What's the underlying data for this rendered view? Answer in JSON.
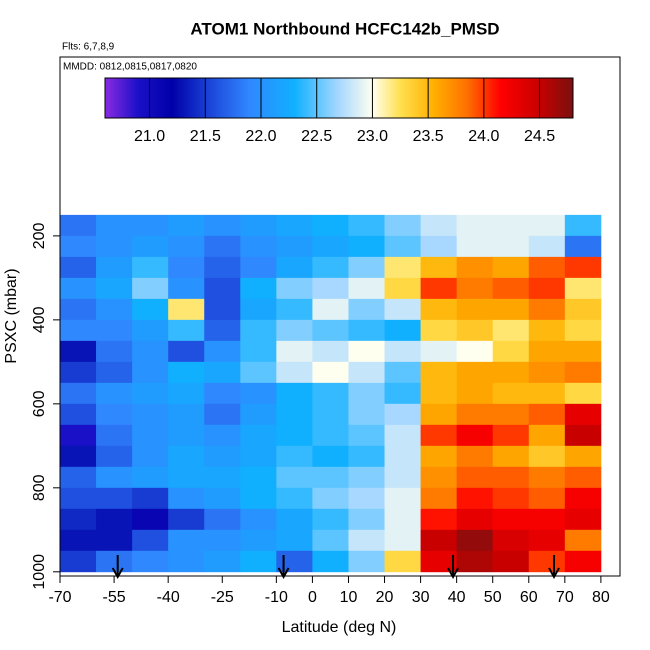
{
  "chart_data": {
    "type": "heatmap",
    "title": "ATOM1 Northbound HCFC142b_PMSD",
    "subtitle": "Flts: 6,7,8,9",
    "annotation": "MMDD: 0812,0815,0817,0820",
    "x_label": "Latitude (deg N)",
    "y_label": "PSXC (mbar)",
    "xlim": [
      -70,
      85.3
    ],
    "ylim": [
      1010,
      -226
    ],
    "xticks": [
      -70,
      -55,
      -40,
      -25,
      -10,
      0,
      10,
      20,
      30,
      40,
      50,
      60,
      70,
      80
    ],
    "yticks": [
      200,
      400,
      600,
      800,
      1000
    ],
    "x_edges": [
      -70,
      -60,
      -50,
      -40,
      -30,
      -20,
      -10,
      0,
      10,
      20,
      30,
      40,
      50,
      60,
      70,
      80
    ],
    "y_edges": [
      150,
      200,
      250,
      300,
      350,
      400,
      450,
      500,
      550,
      600,
      650,
      700,
      750,
      800,
      850,
      900,
      950,
      1000
    ],
    "z": [
      [
        21.8,
        22.0,
        22.0,
        22.1,
        22.0,
        22.1,
        22.2,
        22.3,
        22.4,
        22.6,
        22.8,
        22.9,
        22.9,
        22.9,
        22.4
      ],
      [
        21.9,
        22.0,
        22.1,
        22.0,
        21.8,
        22.0,
        22.1,
        22.2,
        22.3,
        22.5,
        22.7,
        22.9,
        22.9,
        22.8,
        21.8
      ],
      [
        21.7,
        22.1,
        22.4,
        21.9,
        21.7,
        21.9,
        22.2,
        22.4,
        22.6,
        23.2,
        23.5,
        23.7,
        23.6,
        23.9,
        24.0
      ],
      [
        22.0,
        22.2,
        22.6,
        22.0,
        21.6,
        22.3,
        22.6,
        22.7,
        22.9,
        23.3,
        24.0,
        23.8,
        23.9,
        24.0,
        23.2
      ],
      [
        21.8,
        22.0,
        22.3,
        23.2,
        21.6,
        22.2,
        22.4,
        22.9,
        22.6,
        22.8,
        23.5,
        23.6,
        23.6,
        23.8,
        23.4
      ],
      [
        21.9,
        21.9,
        22.1,
        22.4,
        21.7,
        22.4,
        22.6,
        22.5,
        22.4,
        22.3,
        23.3,
        23.4,
        23.2,
        23.5,
        23.3
      ],
      [
        21.3,
        21.8,
        22.0,
        21.6,
        22.0,
        22.4,
        22.9,
        22.8,
        23.0,
        22.8,
        22.9,
        23.0,
        23.3,
        23.6,
        23.6
      ],
      [
        21.5,
        21.7,
        22.0,
        22.3,
        22.2,
        22.5,
        22.8,
        23.0,
        22.8,
        22.5,
        23.5,
        23.6,
        23.6,
        23.7,
        23.8
      ],
      [
        21.8,
        22.0,
        22.1,
        22.2,
        21.9,
        22.0,
        22.3,
        22.4,
        22.6,
        22.4,
        23.5,
        23.6,
        23.5,
        23.5,
        23.3
      ],
      [
        21.6,
        21.9,
        22.0,
        22.1,
        21.8,
        22.1,
        22.3,
        22.4,
        22.6,
        22.7,
        23.6,
        23.8,
        23.8,
        23.9,
        24.3
      ],
      [
        20.9,
        21.8,
        22.0,
        22.1,
        22.0,
        22.2,
        22.3,
        22.4,
        22.5,
        22.8,
        24.0,
        24.2,
        24.0,
        23.6,
        24.5
      ],
      [
        21.3,
        21.7,
        22.0,
        22.2,
        22.1,
        22.2,
        22.4,
        22.3,
        22.4,
        22.8,
        23.6,
        23.8,
        23.6,
        23.4,
        23.6
      ],
      [
        21.7,
        22.0,
        22.1,
        22.2,
        22.2,
        22.3,
        22.5,
        22.5,
        22.6,
        22.8,
        23.7,
        23.9,
        23.9,
        23.8,
        23.9
      ],
      [
        21.6,
        21.6,
        21.5,
        22.0,
        22.1,
        22.3,
        22.4,
        22.6,
        22.7,
        22.9,
        23.8,
        24.1,
        24.0,
        23.9,
        24.2
      ],
      [
        21.4,
        21.3,
        21.1,
        21.5,
        21.8,
        22.0,
        22.2,
        22.4,
        22.6,
        22.9,
        24.1,
        24.3,
        24.2,
        24.2,
        24.3
      ],
      [
        21.3,
        21.3,
        21.6,
        22.0,
        22.0,
        22.1,
        22.2,
        22.5,
        22.8,
        22.9,
        24.5,
        24.7,
        24.4,
        24.3,
        23.8
      ],
      [
        21.5,
        21.8,
        21.9,
        22.0,
        22.1,
        22.3,
        21.7,
        22.3,
        22.6,
        23.3,
        24.3,
        24.6,
        24.5,
        24.0,
        24.2
      ]
    ],
    "colorbar_lim": [
      20.6,
      24.8
    ],
    "colorbar_ticks": [
      {
        "value": 21,
        "label": "21.0"
      },
      21.5,
      {
        "value": 22,
        "label": "22.0"
      },
      22.5,
      {
        "value": 23,
        "label": "23.0"
      },
      23.5,
      {
        "value": 24,
        "label": "24.0"
      },
      24.5
    ],
    "colorscale": [
      {
        "value": 20.6,
        "color": "#8a2be2"
      },
      {
        "value": 20.9,
        "color": "#1a10c8"
      },
      {
        "value": 21.2,
        "color": "#0000a8"
      },
      {
        "value": 21.6,
        "color": "#2050e0"
      },
      {
        "value": 21.9,
        "color": "#3088ff"
      },
      {
        "value": 22.3,
        "color": "#10b0ff"
      },
      {
        "value": 22.7,
        "color": "#a8d8ff"
      },
      {
        "value": 23.0,
        "color": "#fffff0"
      },
      {
        "value": 23.25,
        "color": "#ffe050"
      },
      {
        "value": 23.55,
        "color": "#ffb000"
      },
      {
        "value": 23.85,
        "color": "#ff7000"
      },
      {
        "value": 24.15,
        "color": "#ff0000"
      },
      {
        "value": 24.5,
        "color": "#c80000"
      },
      {
        "value": 24.8,
        "color": "#7a1010"
      }
    ],
    "markers": [
      -54,
      -8,
      39,
      67
    ]
  }
}
